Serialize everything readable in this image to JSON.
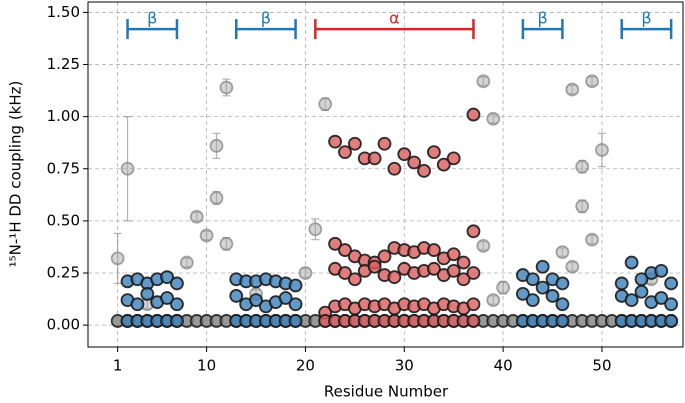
{
  "chart_data": {
    "type": "scatter",
    "xlabel": "Residue Number",
    "ylabel": "¹⁵N-¹H DD coupling (kHz)",
    "xlim": [
      -2,
      58.2
    ],
    "ylim": [
      -0.105,
      1.55
    ],
    "xticks": [
      1,
      10,
      20,
      30,
      40,
      50
    ],
    "yticks": [
      {
        "value": 0,
        "label": "0.00"
      },
      {
        "value": 0.25,
        "label": "0.25"
      },
      {
        "value": 0.5,
        "label": "0.50"
      },
      {
        "value": 0.75,
        "label": "0.75"
      },
      {
        "value": 1,
        "label": "1.00"
      },
      {
        "value": 1.25,
        "label": "1.25"
      },
      {
        "value": 1.5,
        "label": "1.50"
      }
    ],
    "grid": true,
    "annotations": [
      {
        "label": "β",
        "x": [
          2,
          7
        ],
        "y": 1.42,
        "color": "#1f77b4"
      },
      {
        "label": "β",
        "x": [
          13,
          19
        ],
        "y": 1.42,
        "color": "#1f77b4"
      },
      {
        "label": "α",
        "x": [
          21,
          37
        ],
        "y": 1.42,
        "color": "#d62728"
      },
      {
        "label": "β",
        "x": [
          42,
          46
        ],
        "y": 1.42,
        "color": "#1f77b4"
      },
      {
        "label": "β",
        "x": [
          52,
          57
        ],
        "y": 1.42,
        "color": "#1f77b4"
      }
    ],
    "series": [
      {
        "color": "#7f7f7f",
        "edgecolor": "#222222",
        "x": [
          1,
          2,
          3,
          4,
          5,
          6,
          7,
          8,
          9,
          10,
          11,
          12,
          13,
          14,
          15,
          16,
          17,
          18,
          19,
          20,
          21,
          22,
          23,
          24,
          25,
          26,
          27,
          28,
          29,
          30,
          31,
          32,
          33,
          34,
          35,
          36,
          37,
          38,
          39,
          40,
          41,
          42,
          43,
          44,
          45,
          46,
          47,
          48,
          49,
          50,
          51,
          52,
          53,
          54,
          55,
          56,
          57
        ],
        "values": [
          0.02,
          0.02,
          0.02,
          0.02,
          0.02,
          0.02,
          0.02,
          0.02,
          0.02,
          0.02,
          0.02,
          0.02,
          0.02,
          0.02,
          0.02,
          0.02,
          0.02,
          0.02,
          0.02,
          0.02,
          0.02,
          0.02,
          0.02,
          0.02,
          0.02,
          0.02,
          0.02,
          0.02,
          0.02,
          0.02,
          0.02,
          0.02,
          0.02,
          0.02,
          0.02,
          0.02,
          0.02,
          0.02,
          0.02,
          0.02,
          0.02,
          0.02,
          0.02,
          0.02,
          0.02,
          0.02,
          0.02,
          0.02,
          0.02,
          0.02,
          0.02,
          0.02,
          0.02,
          0.02,
          0.02,
          0.02,
          0.02
        ]
      },
      {
        "color": "#a9a9a9",
        "edgecolor": "#808080",
        "x": [
          1,
          2,
          9,
          10,
          11,
          11,
          12,
          12,
          21,
          22,
          38,
          39,
          38,
          47,
          48,
          48,
          49,
          49,
          50,
          8,
          20,
          40,
          39,
          46,
          47,
          55,
          4,
          15
        ],
        "values": [
          0.32,
          0.75,
          0.52,
          0.43,
          0.86,
          0.61,
          1.14,
          0.39,
          0.46,
          1.06,
          1.17,
          0.99,
          0.38,
          1.13,
          0.76,
          0.57,
          0.41,
          1.17,
          0.84,
          0.3,
          0.25,
          0.18,
          0.12,
          0.35,
          0.28,
          0.22,
          0.1,
          0.15
        ],
        "errors": [
          0.12,
          0.25,
          0.02,
          0.02,
          0.06,
          0.03,
          0.04,
          0.03,
          0.05,
          0.03,
          0.02,
          0.02,
          0.02,
          0.02,
          0.03,
          0.03,
          0.02,
          0.02,
          0.08,
          0.02,
          0.02,
          0.03,
          0.02,
          0.02,
          0.02,
          0.02,
          0.02,
          0.02
        ]
      },
      {
        "color": "#3b7fb8",
        "edgecolor": "#1a1a1a",
        "x": [
          2,
          3,
          4,
          5,
          6,
          7,
          13,
          14,
          15,
          16,
          17,
          18,
          19,
          42,
          43,
          44,
          45,
          46,
          52,
          53,
          54,
          55,
          56,
          57,
          2,
          3,
          4,
          5,
          6,
          7,
          13,
          14,
          15,
          16,
          17,
          18,
          19,
          42,
          43,
          44,
          45,
          46,
          52,
          53,
          54,
          55,
          56,
          57,
          2,
          3,
          4,
          5,
          6,
          7,
          13,
          14,
          15,
          16,
          17,
          18,
          19,
          42,
          43,
          44,
          45,
          46,
          52,
          53,
          54,
          55,
          56,
          57
        ],
        "values": [
          0.21,
          0.22,
          0.2,
          0.22,
          0.23,
          0.2,
          0.22,
          0.21,
          0.21,
          0.22,
          0.21,
          0.2,
          0.19,
          0.24,
          0.22,
          0.28,
          0.22,
          0.2,
          0.2,
          0.3,
          0.22,
          0.25,
          0.26,
          0.2,
          0.12,
          0.1,
          0.15,
          0.11,
          0.13,
          0.1,
          0.14,
          0.1,
          0.12,
          0.09,
          0.11,
          0.13,
          0.1,
          0.15,
          0.12,
          0.18,
          0.14,
          0.1,
          0.14,
          0.12,
          0.16,
          0.11,
          0.13,
          0.1,
          0.02,
          0.02,
          0.02,
          0.02,
          0.02,
          0.02,
          0.02,
          0.02,
          0.02,
          0.02,
          0.02,
          0.02,
          0.02,
          0.02,
          0.02,
          0.02,
          0.02,
          0.02,
          0.02,
          0.02,
          0.02,
          0.02,
          0.02,
          0.02
        ]
      },
      {
        "color": "#d95c5c",
        "edgecolor": "#1a1a1a",
        "x": [
          23,
          24,
          25,
          26,
          27,
          28,
          29,
          30,
          31,
          32,
          33,
          34,
          35,
          37,
          23,
          24,
          25,
          26,
          27,
          28,
          29,
          30,
          31,
          32,
          33,
          34,
          35,
          36,
          37,
          23,
          24,
          25,
          26,
          27,
          28,
          29,
          30,
          31,
          32,
          33,
          34,
          35,
          36,
          37,
          22,
          23,
          24,
          25,
          26,
          27,
          28,
          29,
          30,
          31,
          32,
          33,
          34,
          35,
          36,
          37,
          22,
          23,
          24,
          25,
          26,
          27,
          28,
          29,
          30,
          31,
          32,
          33,
          34,
          35,
          36,
          37
        ],
        "values": [
          0.88,
          0.83,
          0.87,
          0.8,
          0.8,
          0.87,
          0.75,
          0.82,
          0.78,
          0.74,
          0.83,
          0.77,
          0.8,
          1.01,
          0.39,
          0.36,
          0.33,
          0.31,
          0.3,
          0.33,
          0.37,
          0.36,
          0.35,
          0.37,
          0.36,
          0.32,
          0.34,
          0.3,
          0.45,
          0.27,
          0.25,
          0.22,
          0.26,
          0.28,
          0.24,
          0.23,
          0.27,
          0.25,
          0.26,
          0.27,
          0.24,
          0.26,
          0.22,
          0.25,
          0.06,
          0.09,
          0.1,
          0.08,
          0.1,
          0.09,
          0.1,
          0.08,
          0.1,
          0.09,
          0.1,
          0.08,
          0.1,
          0.09,
          0.08,
          0.1,
          0.02,
          0.02,
          0.02,
          0.02,
          0.02,
          0.02,
          0.02,
          0.02,
          0.02,
          0.02,
          0.02,
          0.02,
          0.02,
          0.02,
          0.02,
          0.02
        ]
      }
    ]
  }
}
